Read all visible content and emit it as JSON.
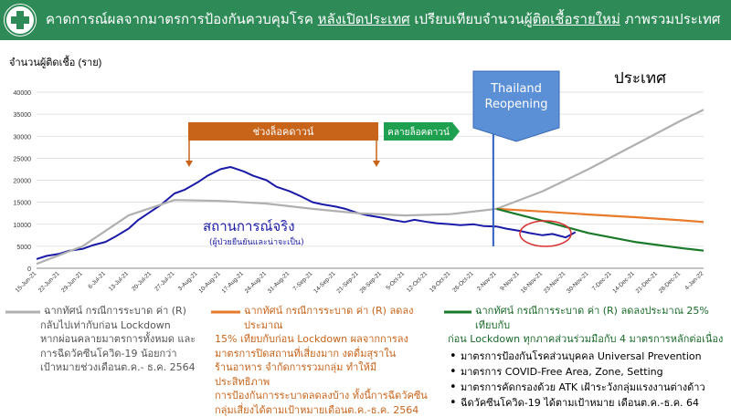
{
  "header": {
    "title_part1": "คาดการณ์ผลจากมาตรการป้องกันควบคุมโรค ",
    "title_part2": "หลังเปิดประเทศ",
    "title_part3": " เปรียบเทียบจำนวน",
    "title_part4": "ผู้ติดเชื้อรายใหม่",
    "title_part5": " ภาพรวมประเทศ",
    "bar_color": "#2e8b57"
  },
  "chart_data": {
    "type": "line",
    "ylabel": "จำนวนผู้ติดเชื้อ (ราย)",
    "ylim": [
      0,
      40000
    ],
    "yticks": [
      0,
      5000,
      10000,
      15000,
      20000,
      25000,
      30000,
      35000,
      40000
    ],
    "xlim": [
      "15-Jun-21",
      "4-Jan-22"
    ],
    "xticks": [
      "15-Jun-21",
      "22-Jun-21",
      "29-Jun-21",
      "6-Jul-21",
      "13-Jul-21",
      "20-Jul-21",
      "27-Jul-21",
      "3-Aug-21",
      "10-Aug-21",
      "17-Aug-21",
      "24-Aug-21",
      "31-Aug-21",
      "7-Sep-21",
      "14-Sep-21",
      "21-Sep-21",
      "28-Sep-21",
      "5-Oct-21",
      "12-Oct-21",
      "19-Oct-21",
      "26-Oct-21",
      "2-Nov-21",
      "9-Nov-21",
      "16-Nov-21",
      "23-Nov-21",
      "30-Nov-21",
      "7-Dec-21",
      "14-Dec-21",
      "21-Dec-21",
      "28-Dec-21",
      "4-Jan-22"
    ],
    "series": [
      {
        "name": "actual",
        "color": "#1a1aa8",
        "x": [
          "15-Jun-21",
          "18-Jun-21",
          "22-Jun-21",
          "25-Jun-21",
          "29-Jun-21",
          "2-Jul-21",
          "6-Jul-21",
          "9-Jul-21",
          "13-Jul-21",
          "16-Jul-21",
          "20-Jul-21",
          "23-Jul-21",
          "27-Jul-21",
          "30-Jul-21",
          "3-Aug-21",
          "6-Aug-21",
          "10-Aug-21",
          "13-Aug-21",
          "17-Aug-21",
          "20-Aug-21",
          "24-Aug-21",
          "27-Aug-21",
          "31-Aug-21",
          "3-Sep-21",
          "7-Sep-21",
          "10-Sep-21",
          "14-Sep-21",
          "17-Sep-21",
          "21-Sep-21",
          "24-Sep-21",
          "28-Sep-21",
          "1-Oct-21",
          "5-Oct-21",
          "8-Oct-21",
          "12-Oct-21",
          "15-Oct-21",
          "19-Oct-21",
          "22-Oct-21",
          "26-Oct-21",
          "29-Oct-21",
          "2-Nov-21",
          "5-Nov-21",
          "9-Nov-21",
          "12-Nov-21",
          "16-Nov-21",
          "19-Nov-21",
          "23-Nov-21",
          "26-Nov-21"
        ],
        "y": [
          2100,
          2800,
          3300,
          4000,
          4400,
          5200,
          6000,
          7200,
          9000,
          11000,
          13000,
          14500,
          17000,
          17800,
          19500,
          21000,
          22500,
          23000,
          22000,
          21000,
          20000,
          18500,
          17500,
          16500,
          15000,
          14500,
          14000,
          13500,
          12500,
          12000,
          11500,
          11000,
          10500,
          11000,
          10500,
          10200,
          10000,
          9800,
          10000,
          9600,
          9500,
          9000,
          8500,
          8000,
          7500,
          7800,
          7000,
          8200
        ]
      },
      {
        "name": "R",
        "color": "#b0b0b0",
        "x": [
          "15-Jun-21",
          "29-Jun-21",
          "13-Jul-21",
          "27-Jul-21",
          "10-Aug-21",
          "24-Aug-21",
          "7-Sep-21",
          "21-Sep-21",
          "5-Oct-21",
          "19-Oct-21",
          "2-Nov-21",
          "16-Nov-21",
          "30-Nov-21",
          "14-Dec-21",
          "28-Dec-21",
          "4-Jan-22"
        ],
        "y": [
          1000,
          5000,
          12000,
          15500,
          15300,
          14700,
          13500,
          12500,
          12000,
          12300,
          13500,
          17500,
          22500,
          28000,
          33500,
          36000
        ]
      },
      {
        "name": "R ลดลง 15%",
        "color": "#e87a2a",
        "x": [
          "2-Nov-21",
          "16-Nov-21",
          "30-Nov-21",
          "14-Dec-21",
          "28-Dec-21",
          "4-Jan-22"
        ],
        "y": [
          13500,
          12900,
          12200,
          11600,
          10900,
          10500
        ]
      },
      {
        "name": "R ลดลง 25%",
        "color": "#1a7a2a",
        "x": [
          "2-Nov-21",
          "16-Nov-21",
          "30-Nov-21",
          "14-Dec-21",
          "28-Dec-21",
          "4-Jan-22"
        ],
        "y": [
          13500,
          10800,
          8000,
          6000,
          4600,
          4000
        ]
      }
    ]
  },
  "annotations": {
    "lockdown_label": "ช่วงล็อคดาวน์",
    "lockdown_color": "#c0661a",
    "relax_label": "คลายล็อคดาวน์",
    "relax_color": "#1ea050",
    "reopen_line1": "Thailand",
    "reopen_line2": "Reopening",
    "reopen_color": "#5b8fd6",
    "reopen_date": "1-Nov-21",
    "country_label": "ประเทศ",
    "actual_label": "สถานการณ์จริง",
    "actual_sub": "(ผู้ป่วยยืนยันและน่าจะเป็น)"
  },
  "legend": {
    "grey": {
      "line1": "ฉากทัศน์ กรณีการระบาด ค่า (R)",
      "line2": "กลับไปเท่ากับก่อน Lockdown",
      "line3": "หากผ่อนคลายมาตรการทั้งหมด และ",
      "line4": "การฉีดวัคซีนโควิด-19 น้อยกว่า",
      "line5": "เป้าหมายช่วงเดือนต.ค.- ธ.ค. 2564"
    },
    "orange": {
      "line1": "ฉากทัศน์ กรณีการระบาด ค่า (R) ลดลงประมาณ",
      "line2": "15% เทียบกับก่อน Lockdown ผลจากการลง",
      "line3": "มาตรการปิดสถานที่เสี่ยงมาก งดดื่มสุราใน",
      "line4": "ร้านอาหาร จำกัดการรวมกลุ่ม ทำให้มีประสิทธิภาพ",
      "line5": "การป้องกันการระบาดลดลงบ้าง ทั้งนี้การฉีดวัคซีน",
      "line6": "กลุ่มเสี่ยงได้ตามเป้าหมายเดือนต.ค.-ธ.ค. 2564"
    },
    "green": {
      "line1": "ฉากทัศน์ กรณีการระบาด ค่า (R) ลดลงประมาณ 25% เทียบกับ",
      "line2": "ก่อน Lockdown ทุกภาคส่วนร่วมมือกับ 4 มาตรการหลักต่อเนื่อง",
      "bullets": [
        "มาตรการป้องกันโรคส่วนบุคคล Universal Prevention",
        "มาตรการ COVID-Free Area, Zone, Setting",
        "มาตรการคัดกรองด้วย ATK เฝ้าระวังกลุ่มแรงงานต่างด้าว",
        "ฉีดวัคซีนโควิด-19 ได้ตามเป้าหมาย เดือนต.ค.-ธ.ค. 64"
      ]
    }
  }
}
